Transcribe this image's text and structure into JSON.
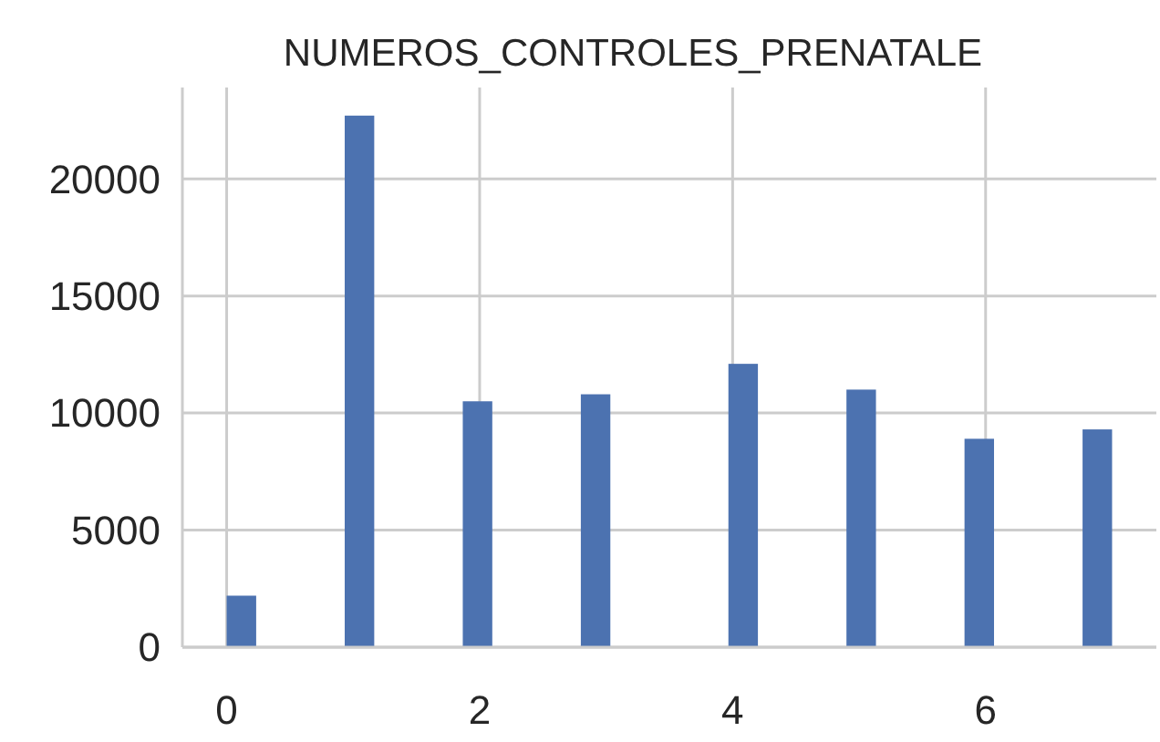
{
  "chart_data": {
    "type": "histogram",
    "title": "NUMEROS_CONTROLES_PRENATALE",
    "bins": [
      0,
      0.2333,
      0.4667,
      0.7,
      0.9333,
      1.1667,
      1.4,
      1.6333,
      1.8667,
      2.1,
      2.3333,
      2.5667,
      2.8,
      3.0333,
      3.2667,
      3.5,
      3.7333,
      3.9667,
      4.2,
      4.4333,
      4.6667,
      4.9,
      5.1333,
      5.3667,
      5.6,
      5.8333,
      6.0667,
      6.3,
      6.5333,
      6.7667,
      7
    ],
    "values": [
      2200,
      0,
      0,
      0,
      22700,
      0,
      0,
      0,
      10500,
      0,
      0,
      0,
      10800,
      0,
      0,
      0,
      0,
      12100,
      0,
      0,
      0,
      11000,
      0,
      0,
      0,
      8900,
      0,
      0,
      0,
      9300
    ],
    "color": "#4c72b0",
    "xlim": [
      -0.35,
      7.35
    ],
    "xticks": [
      0,
      2,
      4,
      6
    ],
    "ylim": [
      0,
      23900
    ],
    "yticks": [
      0,
      5000,
      10000,
      15000,
      20000
    ],
    "grid": true
  }
}
